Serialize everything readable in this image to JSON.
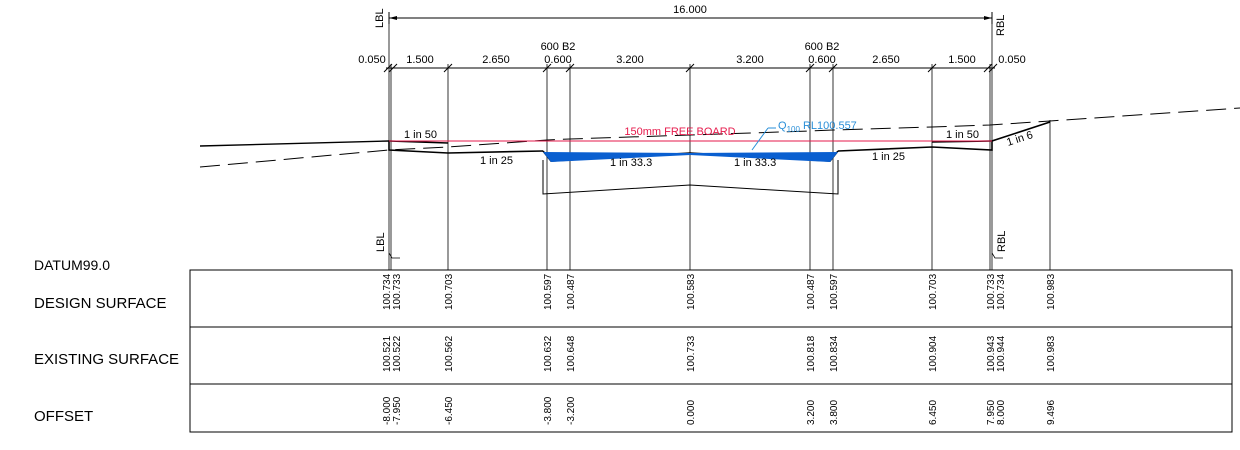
{
  "drawing": {
    "overall_width": "16.000",
    "bank_labels": {
      "left": "LBL",
      "right": "RBL"
    },
    "widths": [
      "0.050",
      "1.500",
      "2.650",
      "0.600",
      "3.200",
      "3.200",
      "0.600",
      "2.650",
      "1.500",
      "0.050"
    ],
    "pipe_labels": [
      "600 B2",
      "600 B2"
    ],
    "slopes": {
      "left_top": "1 in 50",
      "left_lower": "1 in 25",
      "left_channel": "1 in 33.3",
      "right_channel": "1 in 33.3",
      "right_lower": "1 in 25",
      "right_top": "1 in 50",
      "batter": "1 in 6"
    },
    "freeboard": "150mm FREE BOARD",
    "q100": {
      "q": "Q",
      "sub": "100",
      "rl": " RL100.557"
    },
    "datum": "DATUM99.0",
    "colors": {
      "freeboard": "#e6194b",
      "water": "#0a5fd0",
      "q100": "#2a8fd8"
    }
  },
  "table": {
    "rows": [
      {
        "label": "DESIGN SURFACE",
        "values": [
          "100.734",
          "100.733",
          "100.703",
          "100.597",
          "100.487",
          "100.583",
          "100.487",
          "100.597",
          "100.703",
          "100.733",
          "100.734",
          "100.983"
        ]
      },
      {
        "label": "EXISTING SURFACE",
        "values": [
          "100.521",
          "100.522",
          "100.562",
          "100.632",
          "100.648",
          "100.733",
          "100.818",
          "100.834",
          "100.904",
          "100.943",
          "100.944",
          "100.983"
        ]
      },
      {
        "label": "OFFSET",
        "values": [
          "-8.000",
          "-7.950",
          "-6.450",
          "-3.800",
          "-3.200",
          "0.000",
          "3.200",
          "3.800",
          "6.450",
          "7.950",
          "8.000",
          "9.496"
        ]
      }
    ]
  }
}
